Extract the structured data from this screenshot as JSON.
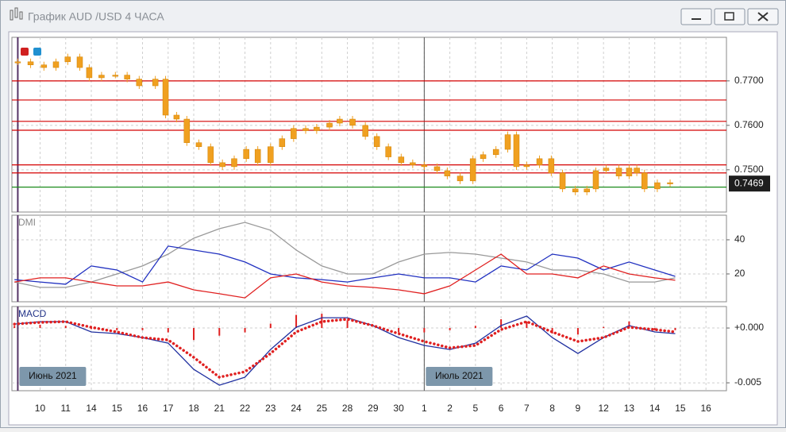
{
  "window": {
    "title": "График AUD /USD  4 ЧАСА"
  },
  "chart_data": [
    {
      "type": "candlestick",
      "color": "#f0a020",
      "x": [
        -0.87,
        -0.37,
        0.15,
        0.62,
        1.08,
        1.55,
        1.92,
        2.4,
        2.94,
        3.4,
        3.87,
        4.5,
        4.9,
        5.33,
        5.73,
        6.2,
        6.66,
        7.12,
        7.58,
        8.05,
        8.5,
        9.0,
        9.45,
        9.9,
        10.37,
        10.8,
        11.3,
        11.7,
        12.2,
        12.7,
        13.15,
        13.6,
        14.1,
        14.55,
        15.0,
        15.5,
        15.9,
        16.4,
        16.9,
        17.3,
        17.8,
        18.26,
        18.6,
        19.0,
        19.5,
        19.96,
        20.4,
        20.9,
        21.35,
        21.7,
        22.1,
        22.6,
        23.0,
        23.3,
        23.6,
        24.1,
        24.6
      ],
      "values": [
        0.7743,
        0.7736,
        0.773,
        0.7743,
        0.7754,
        0.773,
        0.7707,
        0.7713,
        0.7713,
        0.7704,
        0.7689,
        0.7704,
        0.7623,
        0.7614,
        0.7561,
        0.7552,
        0.7516,
        0.7507,
        0.7525,
        0.7546,
        0.7516,
        0.7552,
        0.757,
        0.7593,
        0.7588,
        0.7596,
        0.7605,
        0.7614,
        0.76,
        0.7575,
        0.7552,
        0.7529,
        0.7516,
        0.7511,
        0.7507,
        0.7498,
        0.7486,
        0.7475,
        0.7525,
        0.7534,
        0.7546,
        0.7579,
        0.7507,
        0.7511,
        0.7525,
        0.7493,
        0.7457,
        0.745,
        0.7457,
        0.7498,
        0.7504,
        0.7486,
        0.7504,
        0.7493,
        0.7457,
        0.7471,
        0.7469
      ],
      "xlim": [
        -1.1,
        26.8
      ],
      "ylim": [
        0.7405,
        0.7798
      ],
      "yticks": [
        {
          "value": 0.77,
          "label": "0.7700"
        },
        {
          "value": 0.76,
          "label": "0.7600"
        },
        {
          "value": 0.75,
          "label": "0.7500"
        }
      ],
      "levels": [
        {
          "value": 0.77,
          "color": "#d40000"
        },
        {
          "value": 0.7657,
          "color": "#d40000"
        },
        {
          "value": 0.7609,
          "color": "#d40000"
        },
        {
          "value": 0.7589,
          "color": "#d40000"
        },
        {
          "value": 0.7511,
          "color": "#d40000"
        },
        {
          "value": 0.7493,
          "color": "#d40000"
        },
        {
          "value": 0.7461,
          "color": "#1a8a1a"
        }
      ],
      "last_price": {
        "value": 0.7469,
        "label": "0.7469"
      }
    },
    {
      "type": "line",
      "title": "DMI",
      "x": [
        -1,
        0,
        1,
        2,
        3,
        4,
        5,
        6,
        7,
        8,
        9,
        10,
        11,
        12,
        13,
        14,
        15,
        16,
        17,
        18,
        19,
        20,
        21,
        22,
        23,
        24,
        24.8
      ],
      "series": [
        {
          "color": "#999999",
          "values": [
            15.3,
            12.1,
            12.1,
            15.3,
            20,
            24.7,
            31.6,
            40.9,
            46.5,
            50.2,
            45.6,
            34,
            24.7,
            20,
            20,
            27,
            31.6,
            32.6,
            31.6,
            29.3,
            27,
            22.3,
            22.3,
            20,
            15.3,
            15.3,
            17.7
          ]
        },
        {
          "color": "#2030c0",
          "values": [
            16.7,
            15.3,
            14,
            24.7,
            22.3,
            15.3,
            36.3,
            34,
            31.6,
            27,
            20,
            17.7,
            16.7,
            15.3,
            17.7,
            20,
            17.7,
            17.7,
            15.3,
            24.7,
            22.3,
            31.6,
            29.3,
            22.3,
            27,
            22.3,
            18.6
          ]
        },
        {
          "color": "#e02020",
          "values": [
            15.3,
            17.7,
            17.7,
            15.3,
            13,
            13,
            15.3,
            10.7,
            8.4,
            6,
            17.7,
            20,
            15.3,
            13,
            12.1,
            10.7,
            8.4,
            13,
            22.3,
            31.6,
            20,
            20,
            17.7,
            24.7,
            20,
            17.7,
            16.3
          ]
        }
      ],
      "xlim": [
        -1.1,
        26.8
      ],
      "ylim": [
        3.7,
        54.4
      ],
      "yticks": [
        40,
        20
      ]
    },
    {
      "type": "macd",
      "title": "MACD",
      "x": [
        -1,
        0,
        1,
        2,
        3,
        4,
        5,
        6,
        7,
        8,
        9,
        10,
        11,
        12,
        13,
        14,
        15,
        16,
        17,
        18,
        19,
        20,
        21,
        22,
        23,
        24,
        24.8
      ],
      "series": [
        {
          "color": "#e02020",
          "style": "bar",
          "values": [
            0.0002,
            0.0003,
            0.0002,
            -0.0001,
            -0.0002,
            -0.0002,
            -0.0004,
            -0.0011,
            -0.0007,
            -0.0004,
            0.0004,
            0.0012,
            0.0013,
            0.0007,
            0,
            -0.0004,
            -0.0004,
            -0.0002,
            0.0002,
            0.0008,
            0.0006,
            -0.0005,
            -0.0006,
            0.0001,
            0.0006,
            -0.0002,
            -0.0002
          ]
        },
        {
          "color": "#2030a0",
          "style": "line",
          "values": [
            0.00036,
            0.00058,
            0.00058,
            -0.00036,
            -0.00051,
            -0.00087,
            -0.00138,
            -0.00377,
            -0.00522,
            -0.00449,
            -0.00196,
            7e-05,
            0.00094,
            0.00094,
            0.00022,
            -0.00087,
            -0.00159,
            -0.00196,
            -0.00138,
            0.00022,
            0.00109,
            -0.00087,
            -0.00232,
            -0.00087,
            0.00022,
            -0.00036,
            -0.00051
          ]
        },
        {
          "color": "#e02020",
          "style": "dotted",
          "values": [
            0.00036,
            0.00051,
            0.00058,
            7e-05,
            -0.00036,
            -0.00087,
            -0.00109,
            -0.00268,
            -0.00449,
            -0.00399,
            -0.00232,
            -0.00036,
            0.00058,
            0.0008,
            0.00022,
            -0.00051,
            -0.00123,
            -0.00181,
            -0.00159,
            -0.00014,
            0.00058,
            -0.00036,
            -0.00123,
            -0.00087,
            7e-05,
            -0.00014,
            -0.00036
          ]
        }
      ],
      "xlim": [
        -1.1,
        26.8
      ],
      "ylim": [
        -0.00572,
        0.00196
      ],
      "yticks": [
        {
          "value": 0,
          "label": "+0.000"
        },
        {
          "value": -0.005,
          "label": "-0.005"
        }
      ],
      "xticks": [
        {
          "value": 0,
          "label": "10"
        },
        {
          "value": 1,
          "label": "11"
        },
        {
          "value": 2,
          "label": "14"
        },
        {
          "value": 3,
          "label": "15"
        },
        {
          "value": 4,
          "label": "16"
        },
        {
          "value": 5,
          "label": "17"
        },
        {
          "value": 6,
          "label": "18"
        },
        {
          "value": 7,
          "label": "21"
        },
        {
          "value": 8,
          "label": "22"
        },
        {
          "value": 9,
          "label": "23"
        },
        {
          "value": 10,
          "label": "24"
        },
        {
          "value": 11,
          "label": "25"
        },
        {
          "value": 12,
          "label": "28"
        },
        {
          "value": 13,
          "label": "29"
        },
        {
          "value": 14,
          "label": "30"
        },
        {
          "value": 15,
          "label": "1"
        },
        {
          "value": 16,
          "label": "2"
        },
        {
          "value": 17,
          "label": "5"
        },
        {
          "value": 18,
          "label": "6"
        },
        {
          "value": 19,
          "label": "7"
        },
        {
          "value": 20,
          "label": "8"
        },
        {
          "value": 21,
          "label": "9"
        },
        {
          "value": 22,
          "label": "12"
        },
        {
          "value": 23,
          "label": "13"
        },
        {
          "value": 24,
          "label": "14"
        },
        {
          "value": 25,
          "label": "15"
        },
        {
          "value": 26,
          "label": "16"
        }
      ],
      "period_labels": [
        {
          "value": -0.87,
          "label": "Июнь 2021"
        },
        {
          "value": 15,
          "label": "Июль 2021"
        }
      ]
    }
  ]
}
